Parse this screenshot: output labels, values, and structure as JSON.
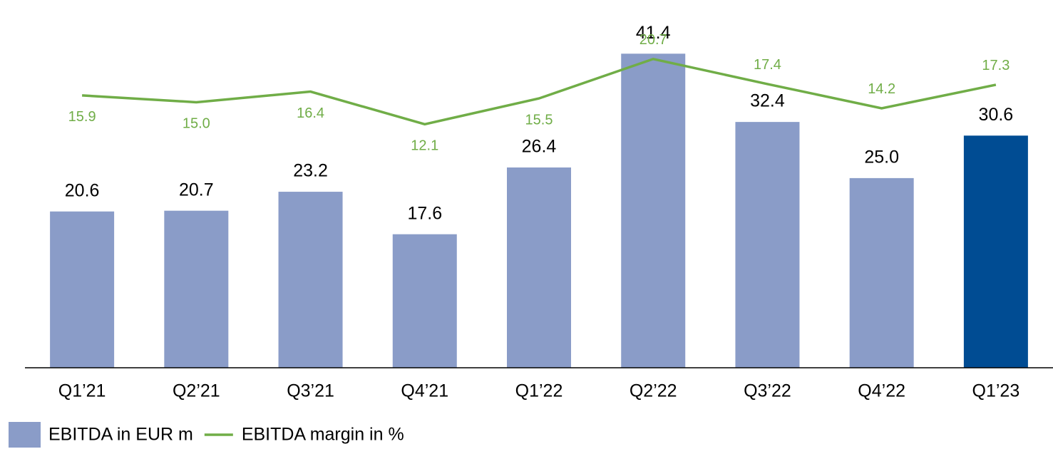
{
  "chart_data": {
    "type": "bar+line",
    "categories": [
      "Q1’21",
      "Q2’21",
      "Q3’21",
      "Q4’21",
      "Q1’22",
      "Q2’22",
      "Q3’22",
      "Q4’22",
      "Q1’23"
    ],
    "series": [
      {
        "name": "EBITDA in EUR m",
        "type": "bar",
        "color": "#8a9cc8",
        "point_colors": [
          "#8a9cc8",
          "#8a9cc8",
          "#8a9cc8",
          "#8a9cc8",
          "#8a9cc8",
          "#8a9cc8",
          "#8a9cc8",
          "#8a9cc8",
          "#004c93"
        ],
        "values": [
          20.6,
          20.7,
          23.2,
          17.6,
          26.4,
          41.4,
          32.4,
          25.0,
          30.6
        ],
        "value_labels": [
          "20.6",
          "20.7",
          "23.2",
          "17.6",
          "26.4",
          "41.4",
          "32.4",
          "25.0",
          "30.6"
        ]
      },
      {
        "name": "EBITDA margin in %",
        "type": "line",
        "axis": "y2",
        "color": "#70ad47",
        "values": [
          15.9,
          15.0,
          16.4,
          12.1,
          15.5,
          20.7,
          17.4,
          14.2,
          17.3
        ],
        "value_labels": [
          "15.9",
          "15.0",
          "16.4",
          "12.1",
          "15.5",
          "20.7",
          "17.4",
          "14.2",
          "17.3"
        ]
      }
    ],
    "ylim": [
      0,
      45
    ],
    "y2lim": [
      -20,
      25
    ],
    "legend": "bottom-left"
  }
}
